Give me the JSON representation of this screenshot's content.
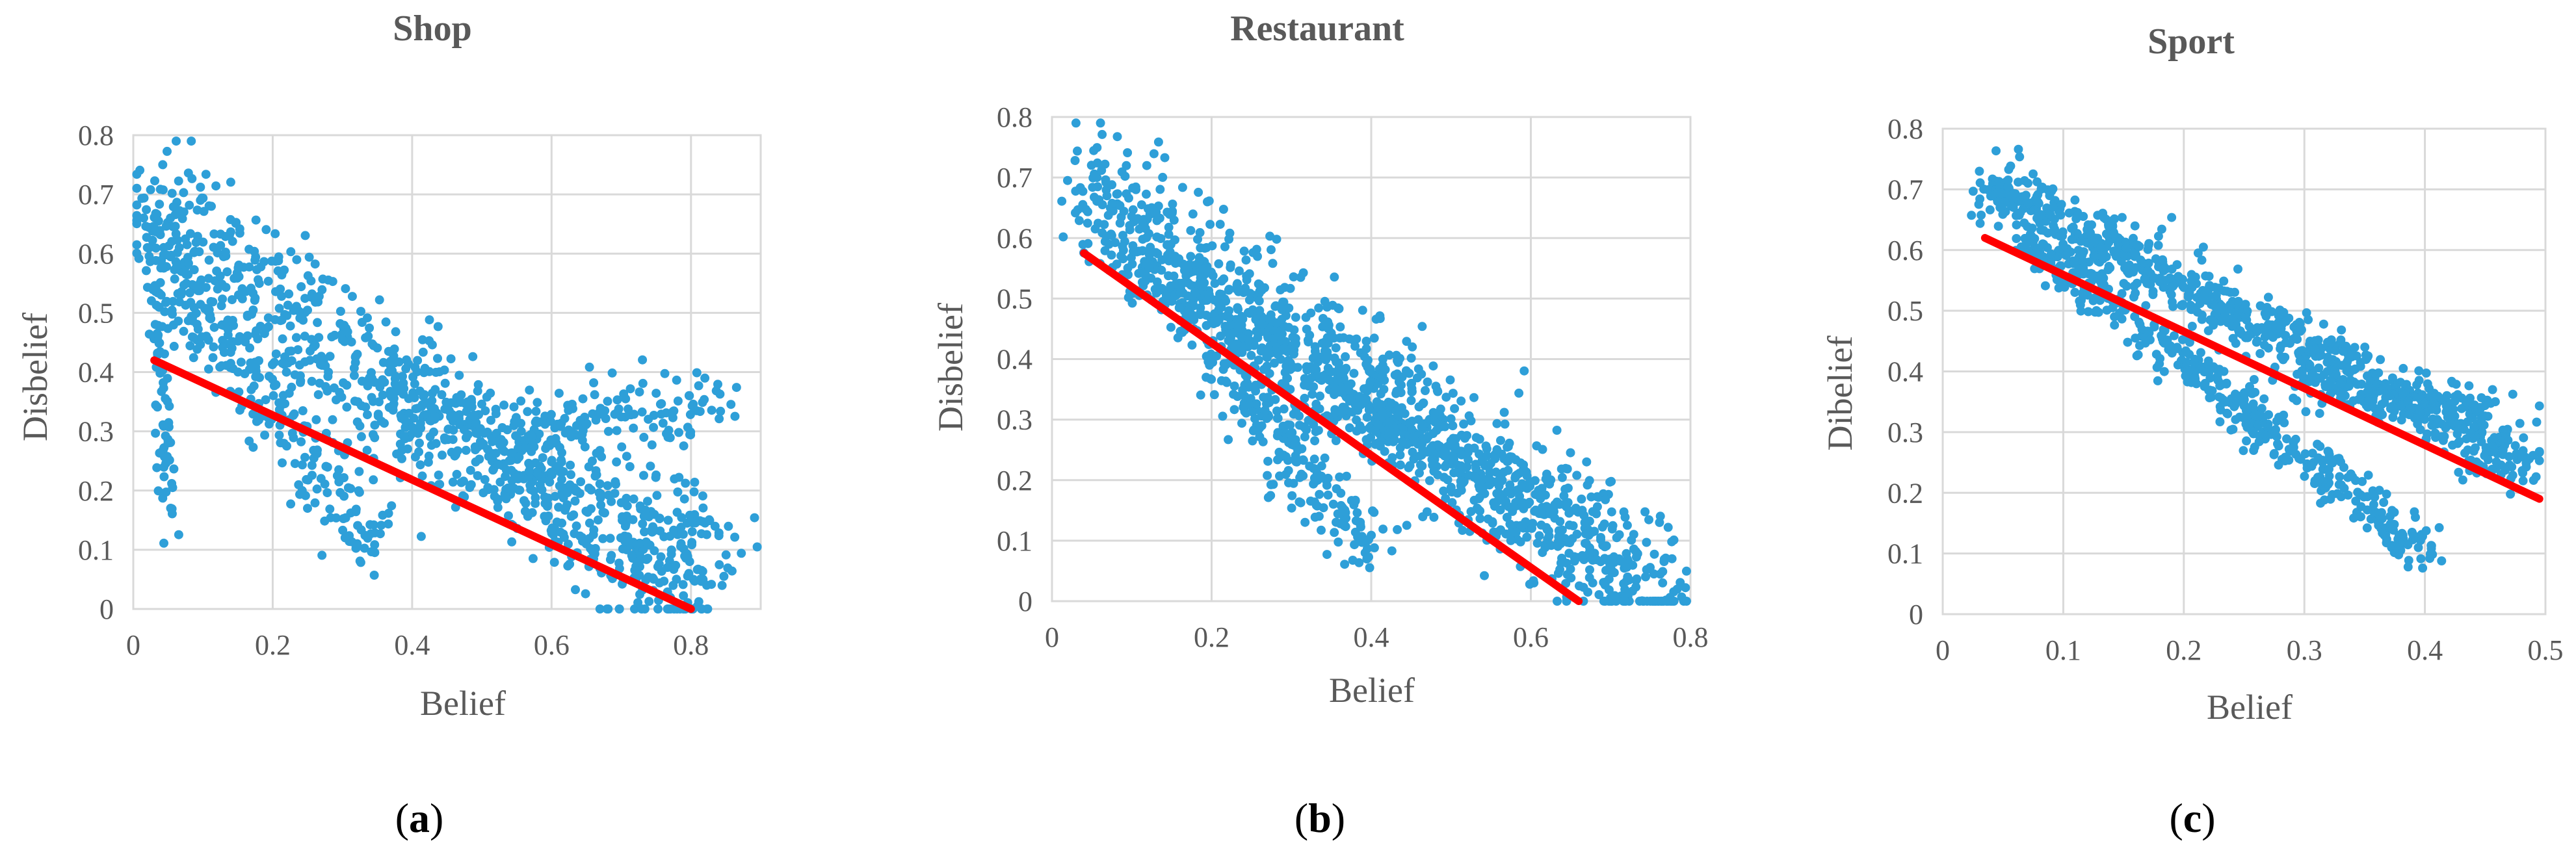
{
  "colors": {
    "points": "#2e9fd8",
    "trend": "#ff0000",
    "grid": "#d9d9d9",
    "text": "#595959"
  },
  "chart_data": [
    {
      "type": "scatter",
      "title": "Shop",
      "panel_label": "a",
      "xlabel": "Belief",
      "ylabel": "Disbelief",
      "xlim": [
        0,
        0.9
      ],
      "ylim": [
        0,
        0.8
      ],
      "x_ticks": [
        "0",
        "0.2",
        "0.4",
        "0.6",
        "0.8"
      ],
      "y_ticks": [
        "0",
        "0.1",
        "0.2",
        "0.3",
        "0.4",
        "0.5",
        "0.6",
        "0.7",
        "0.8"
      ],
      "grid": true,
      "trendline": {
        "x": [
          0.03,
          0.8
        ],
        "y": [
          0.42,
          0.0
        ]
      },
      "clusters": [
        {
          "from": [
            0.03,
            0.68
          ],
          "to": [
            0.82,
            0.0
          ],
          "spread": [
            0.06,
            0.13
          ],
          "n": 700
        },
        {
          "from": [
            0.04,
            0.6
          ],
          "to": [
            0.35,
            0.1
          ],
          "spread": [
            0.05,
            0.07
          ],
          "n": 250
        },
        {
          "from": [
            0.32,
            0.38
          ],
          "to": [
            0.85,
            0.1
          ],
          "spread": [
            0.08,
            0.07
          ],
          "n": 260
        },
        {
          "from": [
            0.55,
            0.3
          ],
          "to": [
            0.85,
            0.35
          ],
          "spread": [
            0.06,
            0.06
          ],
          "n": 130
        },
        {
          "from": [
            0.03,
            0.68
          ],
          "to": [
            0.05,
            0.15
          ],
          "spread": [
            0.012,
            0.06
          ],
          "n": 90
        }
      ]
    },
    {
      "type": "scatter",
      "title": "Restaurant",
      "panel_label": "b",
      "xlabel": "Belief",
      "ylabel": "Disbelief",
      "xlim": [
        0,
        0.8
      ],
      "ylim": [
        0,
        0.8
      ],
      "x_ticks": [
        "0",
        "0.2",
        "0.4",
        "0.6",
        "0.8"
      ],
      "y_ticks": [
        "0",
        "0.1",
        "0.2",
        "0.3",
        "0.4",
        "0.5",
        "0.6",
        "0.7",
        "0.8"
      ],
      "grid": true,
      "trendline": {
        "x": [
          0.04,
          0.66
        ],
        "y": [
          0.575,
          0.0
        ]
      },
      "clusters": [
        {
          "from": [
            0.04,
            0.68
          ],
          "to": [
            0.78,
            0.0
          ],
          "spread": [
            0.04,
            0.12
          ],
          "n": 900
        },
        {
          "from": [
            0.1,
            0.6
          ],
          "to": [
            0.4,
            0.08
          ],
          "spread": [
            0.05,
            0.06
          ],
          "n": 350
        },
        {
          "from": [
            0.2,
            0.5
          ],
          "to": [
            0.65,
            0.1
          ],
          "spread": [
            0.05,
            0.06
          ],
          "n": 350
        }
      ]
    },
    {
      "type": "scatter",
      "title": "Sport",
      "panel_label": "c",
      "xlabel": "Belief",
      "ylabel": "Dibelief",
      "xlim": [
        0,
        0.5
      ],
      "ylim": [
        0,
        0.8
      ],
      "x_ticks": [
        "0",
        "0.1",
        "0.2",
        "0.3",
        "0.4",
        "0.5"
      ],
      "y_ticks": [
        "0",
        "0.1",
        "0.2",
        "0.3",
        "0.4",
        "0.5",
        "0.6",
        "0.7",
        "0.8"
      ],
      "grid": true,
      "trendline": {
        "x": [
          0.035,
          0.495
        ],
        "y": [
          0.62,
          0.19
        ]
      },
      "clusters": [
        {
          "from": [
            0.035,
            0.71
          ],
          "to": [
            0.49,
            0.24
          ],
          "spread": [
            0.02,
            0.05
          ],
          "n": 800
        },
        {
          "from": [
            0.07,
            0.62
          ],
          "to": [
            0.4,
            0.1
          ],
          "spread": [
            0.02,
            0.04
          ],
          "n": 450
        },
        {
          "from": [
            0.3,
            0.38
          ],
          "to": [
            0.45,
            0.33
          ],
          "spread": [
            0.04,
            0.04
          ],
          "n": 160
        }
      ]
    }
  ]
}
